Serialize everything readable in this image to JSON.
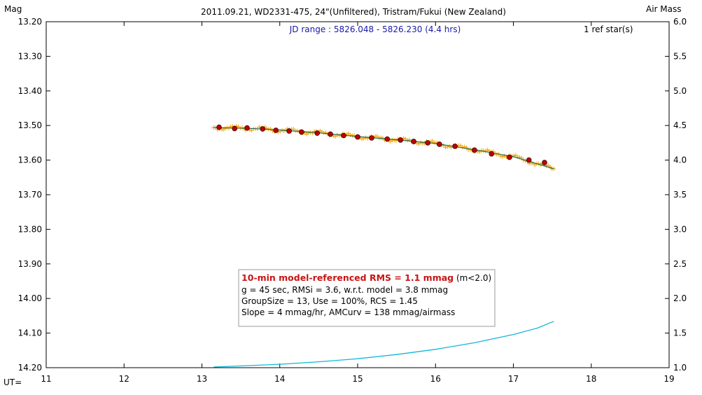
{
  "chart_data": {
    "type": "scatter",
    "title": "2011.09.21, WD2331-475, 24\"(Unfiltered), Tristram/Fukui (New Zealand)",
    "ylabel_left": "Mag",
    "ylabel_right": "Air Mass",
    "xlabel": "UT=",
    "jd_range": "JD range : 5826.048 - 5826.230 (4.4 hrs)",
    "ref_stars": "1 ref star(s)",
    "xlim": [
      11,
      19
    ],
    "ylim": [
      13.2,
      14.2
    ],
    "y_inverted": true,
    "y2lim": [
      1.0,
      6.0
    ],
    "x_ticks": [
      "11",
      "12",
      "13",
      "14",
      "15",
      "16",
      "17",
      "18",
      "19"
    ],
    "y_ticks": [
      "13.20",
      "13.30",
      "13.40",
      "13.50",
      "13.60",
      "13.70",
      "13.80",
      "13.90",
      "14.00",
      "14.10",
      "14.20"
    ],
    "y2_ticks": [
      "6.0",
      "5.5",
      "5.0",
      "4.5",
      "4.0",
      "3.5",
      "3.0",
      "2.5",
      "2.0",
      "1.5",
      "1.0"
    ],
    "grid": false,
    "stats": {
      "headline": "10-min model-referenced RMS = 1.1 mmag",
      "headline_note": " (m<2.0)",
      "line1": "g = 45 sec, RMSi = 3.6, w.r.t. model = 3.8 mmag",
      "line2": "GroupSize = 13, Use = 100%, RCS = 1.45",
      "line3": "Slope = 4 mmag/hr, AMCurv = 138 mmag/airmass"
    },
    "series": [
      {
        "kind": "binned-mag",
        "color": "#c00000",
        "x": [
          13.22,
          13.42,
          13.58,
          13.78,
          13.95,
          14.12,
          14.28,
          14.48,
          14.65,
          14.82,
          15.0,
          15.18,
          15.38,
          15.55,
          15.72,
          15.9,
          16.05,
          16.25,
          16.5,
          16.72,
          16.95,
          17.2,
          17.4
        ],
        "y": [
          13.505,
          13.509,
          13.507,
          13.51,
          13.514,
          13.516,
          13.519,
          13.522,
          13.525,
          13.529,
          13.533,
          13.536,
          13.539,
          13.542,
          13.546,
          13.55,
          13.554,
          13.56,
          13.571,
          13.582,
          13.592,
          13.6,
          13.607
        ]
      },
      {
        "kind": "raw-mag",
        "color": "#f5a000",
        "x_start": 13.15,
        "x_end": 17.52,
        "count": 180
      },
      {
        "kind": "model-trend",
        "color": "#207050",
        "x": [
          13.15,
          13.6,
          14.0,
          14.5,
          15.0,
          15.5,
          16.0,
          16.5,
          17.0,
          17.52
        ],
        "y": [
          13.506,
          13.508,
          13.513,
          13.521,
          13.532,
          13.541,
          13.552,
          13.57,
          13.59,
          13.625
        ]
      },
      {
        "kind": "air-mass",
        "color": "#10b8d8",
        "x": [
          13.15,
          13.5,
          14.0,
          14.5,
          15.0,
          15.5,
          16.0,
          16.5,
          17.0,
          17.3,
          17.52
        ],
        "y": [
          1.01,
          1.025,
          1.05,
          1.085,
          1.13,
          1.19,
          1.265,
          1.36,
          1.48,
          1.57,
          1.67
        ]
      }
    ]
  }
}
